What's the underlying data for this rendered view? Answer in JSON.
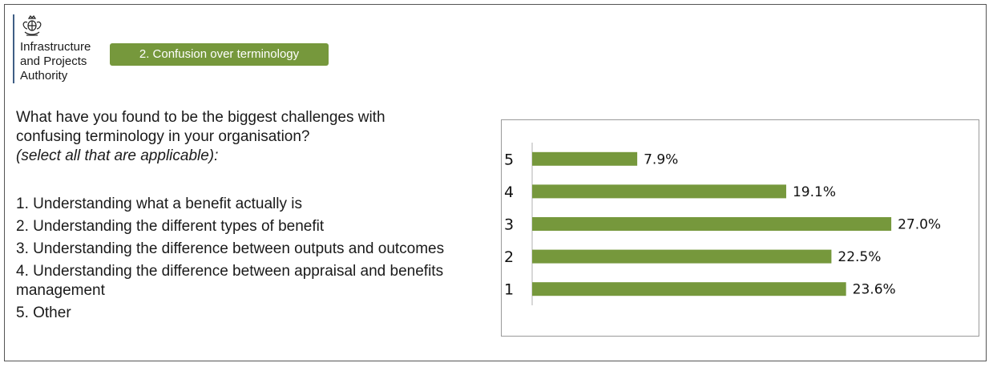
{
  "header": {
    "org_lines": [
      "Infrastructure",
      "and Projects",
      "Authority"
    ],
    "section_tag": "2. Confusion over terminology"
  },
  "question": {
    "lines": [
      "What have you found to be the biggest challenges with",
      "confusing terminology in your organisation?"
    ],
    "note": "(select all that are applicable):"
  },
  "options": [
    "1. Understanding what a benefit actually is",
    "2. Understanding the different types of benefit",
    "3. Understanding the difference between outputs and outcomes",
    "4. Understanding the difference between appraisal and benefits management",
    "5. Other"
  ],
  "colors": {
    "bar": "#76983c",
    "tag_bg": "#76983c",
    "logo_rule": "#3f5e85"
  },
  "chart_data": {
    "type": "bar",
    "orientation": "horizontal",
    "categories": [
      "5",
      "4",
      "3",
      "2",
      "1"
    ],
    "values": [
      7.9,
      19.1,
      27.0,
      22.5,
      23.6
    ],
    "value_labels": [
      "7.9%",
      "19.1%",
      "27.0%",
      "22.5%",
      "23.6%"
    ],
    "unit": "%",
    "xlim": [
      0,
      28.2
    ],
    "grid": false,
    "legend": "none"
  }
}
